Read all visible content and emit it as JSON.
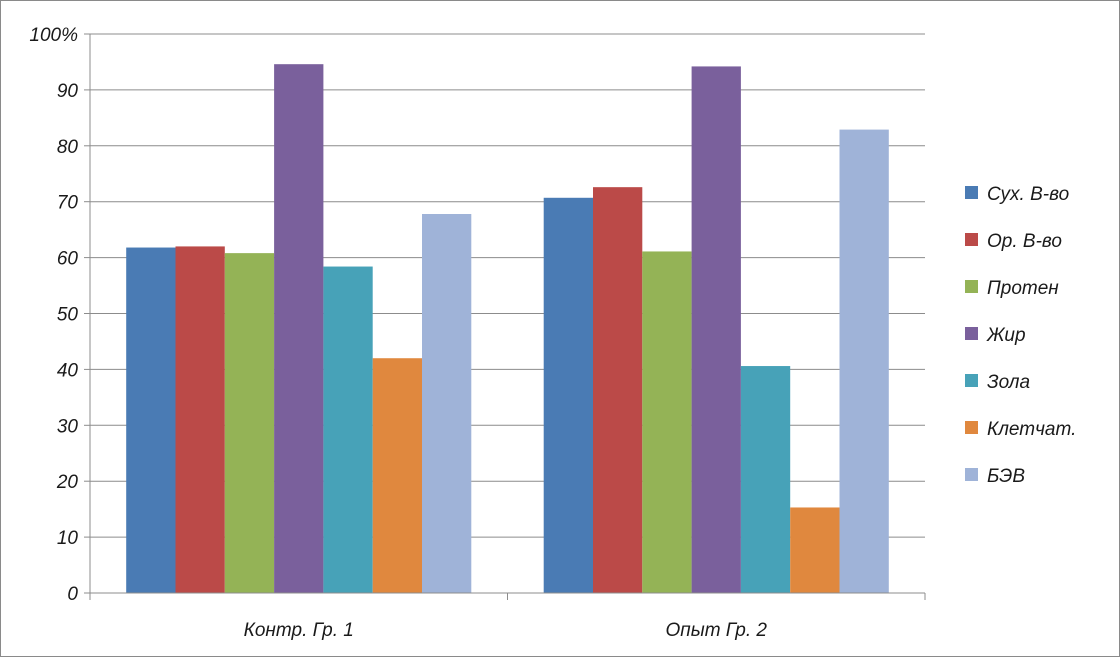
{
  "chart_data": {
    "type": "bar",
    "title": "",
    "xlabel": "",
    "ylabel": "",
    "ylim": [
      0,
      100
    ],
    "yticks": [
      0,
      10,
      20,
      30,
      40,
      50,
      60,
      70,
      80,
      90,
      100
    ],
    "ytick_labels": [
      "0",
      "10",
      "20",
      "30",
      "40",
      "50",
      "60",
      "70",
      "80",
      "90",
      "100%"
    ],
    "categories": [
      "Контр. Гр. 1",
      "Опыт Гр. 2"
    ],
    "grid": true,
    "legend_position": "right",
    "series": [
      {
        "name": "Сух. В-во",
        "color": "#4a7bb4",
        "values": [
          61.8,
          70.7
        ]
      },
      {
        "name": "Ор. В-во",
        "color": "#bb4a48",
        "values": [
          62.0,
          72.6
        ]
      },
      {
        "name": "Протен",
        "color": "#94b356",
        "values": [
          60.8,
          61.1
        ]
      },
      {
        "name": "Жир",
        "color": "#7a609c",
        "values": [
          94.6,
          94.2
        ]
      },
      {
        "name": "Зола",
        "color": "#47a2b8",
        "values": [
          58.4,
          40.6
        ]
      },
      {
        "name": "Клетчат.",
        "color": "#e0883e",
        "values": [
          42.0,
          15.3
        ]
      },
      {
        "name": "БЭВ",
        "color": "#9fb3d8",
        "values": [
          67.8,
          82.9
        ]
      }
    ]
  }
}
